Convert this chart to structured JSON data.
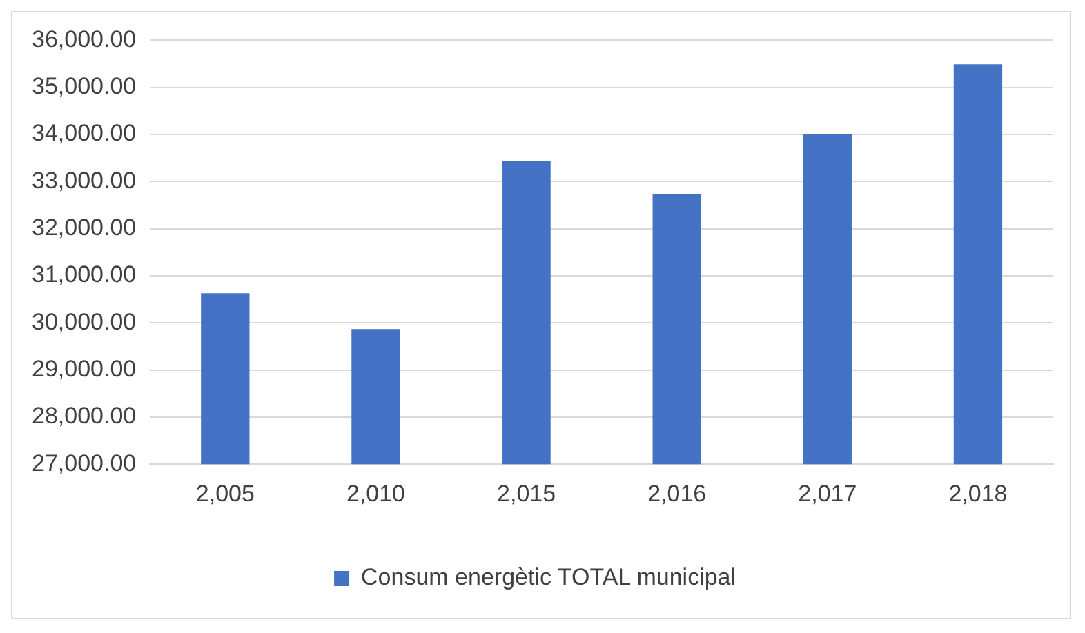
{
  "chart_data": {
    "type": "bar",
    "categories": [
      "2,005",
      "2,010",
      "2,015",
      "2,016",
      "2,017",
      "2,018"
    ],
    "series": [
      {
        "name": "Consum energètic TOTAL municipal",
        "color": "#4472c4",
        "values": [
          30630,
          29870,
          33430,
          32730,
          34010,
          35490
        ]
      }
    ],
    "ylim": [
      27000,
      36000
    ],
    "yticks": [
      {
        "value": 27000,
        "label": "27,000.00"
      },
      {
        "value": 28000,
        "label": "28,000.00"
      },
      {
        "value": 29000,
        "label": "29,000.00"
      },
      {
        "value": 30000,
        "label": "30,000.00"
      },
      {
        "value": 31000,
        "label": "31,000.00"
      },
      {
        "value": 32000,
        "label": "32,000.00"
      },
      {
        "value": 33000,
        "label": "33,000.00"
      },
      {
        "value": 34000,
        "label": "34,000.00"
      },
      {
        "value": 35000,
        "label": "35,000.00"
      },
      {
        "value": 36000,
        "label": "36,000.00"
      }
    ],
    "grid": "y",
    "legend": "bottom"
  }
}
